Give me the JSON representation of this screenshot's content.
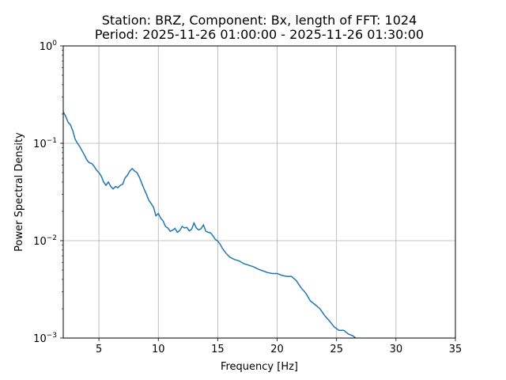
{
  "chart_data": {
    "type": "line",
    "title_line1": "Station: BRZ, Component: Bx, length of FFT: 1024",
    "title_line2": "Period: 2025-11-26 01:00:00 - 2025-11-26 01:30:00",
    "xlabel": "Frequency [Hz]",
    "ylabel": "Power Spectral Density",
    "yscale": "log",
    "grid": true,
    "xlim": [
      2,
      35
    ],
    "ylim": [
      0.001,
      1
    ],
    "xticks": [
      5,
      10,
      15,
      20,
      25,
      30,
      35
    ],
    "xtick_labels": [
      "5",
      "10",
      "15",
      "20",
      "25",
      "30",
      "35"
    ],
    "yticks": [
      0.001,
      0.01,
      0.1,
      1
    ],
    "ytick_labels": [
      {
        "base": "10",
        "exp": "−3"
      },
      {
        "base": "10",
        "exp": "−2"
      },
      {
        "base": "10",
        "exp": "−1"
      },
      {
        "base": "10",
        "exp": "0"
      }
    ],
    "line_color": "#1f77b4",
    "series": [
      {
        "x": [
          2.0,
          2.2,
          2.4,
          2.6,
          2.8,
          3.0,
          3.2,
          3.4,
          3.6,
          3.8,
          4.0,
          4.2,
          4.4,
          4.6,
          4.8,
          5.0,
          5.2,
          5.4,
          5.6,
          5.8,
          6.0,
          6.2,
          6.4,
          6.6,
          6.8,
          7.0,
          7.2,
          7.4,
          7.6,
          7.8,
          8.0,
          8.2,
          8.4,
          8.6,
          8.8,
          9.0,
          9.2,
          9.4,
          9.6,
          9.8,
          10.0,
          10.2,
          10.4,
          10.6,
          10.8,
          11.0,
          11.2,
          11.4,
          11.6,
          11.8,
          12.0,
          12.2,
          12.4,
          12.6,
          12.8,
          13.0,
          13.2,
          13.4,
          13.6,
          13.8,
          14.0,
          14.2,
          14.4,
          14.6,
          14.8,
          15.0,
          15.2,
          15.4,
          15.6,
          15.8,
          16.0,
          16.4,
          16.8,
          17.2,
          17.6,
          18.0,
          18.4,
          18.8,
          19.2,
          19.6,
          20.0,
          20.4,
          20.8,
          21.2,
          21.6,
          22.0,
          22.4,
          22.8,
          23.2,
          23.6,
          24.0,
          24.4,
          24.8,
          25.2,
          25.6,
          26.0,
          26.4,
          26.6
        ],
        "values": [
          0.21,
          0.19,
          0.165,
          0.155,
          0.135,
          0.11,
          0.1,
          0.092,
          0.083,
          0.075,
          0.067,
          0.063,
          0.062,
          0.058,
          0.053,
          0.05,
          0.046,
          0.04,
          0.037,
          0.04,
          0.036,
          0.034,
          0.036,
          0.035,
          0.037,
          0.038,
          0.044,
          0.047,
          0.052,
          0.055,
          0.052,
          0.05,
          0.045,
          0.039,
          0.034,
          0.03,
          0.026,
          0.024,
          0.022,
          0.018,
          0.019,
          0.017,
          0.016,
          0.014,
          0.0135,
          0.0125,
          0.0128,
          0.0134,
          0.0122,
          0.0127,
          0.014,
          0.0135,
          0.0137,
          0.0126,
          0.0131,
          0.0152,
          0.0135,
          0.0129,
          0.0133,
          0.0145,
          0.0125,
          0.0122,
          0.012,
          0.0112,
          0.0103,
          0.0099,
          0.0092,
          0.0083,
          0.0077,
          0.0072,
          0.0068,
          0.0064,
          0.0062,
          0.0058,
          0.0056,
          0.0054,
          0.0051,
          0.0049,
          0.0047,
          0.0046,
          0.0046,
          0.0044,
          0.0043,
          0.0043,
          0.0039,
          0.0033,
          0.0029,
          0.0024,
          0.0022,
          0.002,
          0.0017,
          0.0015,
          0.0013,
          0.0012,
          0.0012,
          0.0011,
          0.00105,
          0.001
        ]
      }
    ]
  }
}
